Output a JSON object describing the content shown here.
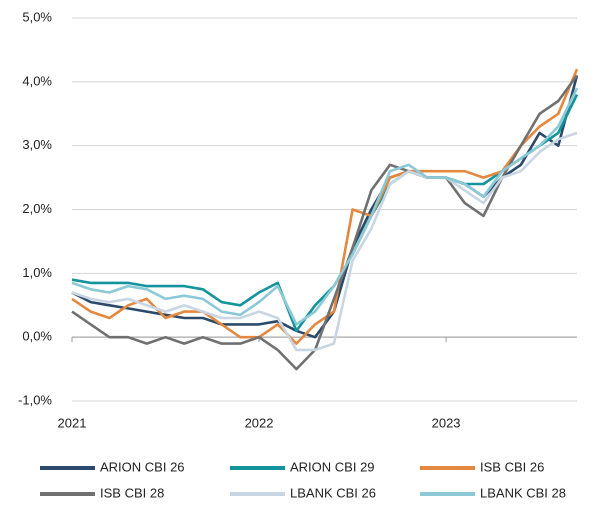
{
  "chart_data": {
    "type": "line",
    "x": [
      2021.0,
      2021.1,
      2021.2,
      2021.3,
      2021.4,
      2021.5,
      2021.6,
      2021.7,
      2021.8,
      2021.9,
      2022.0,
      2022.1,
      2022.2,
      2022.3,
      2022.4,
      2022.5,
      2022.6,
      2022.7,
      2022.8,
      2022.9,
      2023.0,
      2023.1,
      2023.2,
      2023.3,
      2023.4,
      2023.5,
      2023.6,
      2023.7
    ],
    "xlim": [
      2021.0,
      2023.7
    ],
    "xticks": [
      2021,
      2022,
      2023
    ],
    "ylim": [
      -1,
      5
    ],
    "yticks": [
      {
        "value": -1,
        "label": "-1,0%"
      },
      {
        "value": 0,
        "label": "0,0%"
      },
      {
        "value": 1,
        "label": "1,0%"
      },
      {
        "value": 2,
        "label": "2,0%"
      },
      {
        "value": 3,
        "label": "3,0%"
      },
      {
        "value": 4,
        "label": "4,0%"
      },
      {
        "value": 5,
        "label": "5,0%"
      }
    ],
    "grid": true,
    "legend": "bottom",
    "series": [
      {
        "name": "ARION CBI 26",
        "color": "#2b4a6b",
        "values": [
          0.7,
          0.55,
          0.5,
          0.45,
          0.4,
          0.35,
          0.3,
          0.3,
          0.2,
          0.2,
          0.2,
          0.25,
          0.1,
          0.0,
          0.4,
          1.4,
          2.0,
          2.5,
          2.6,
          2.5,
          2.5,
          2.4,
          2.2,
          2.5,
          2.7,
          3.2,
          3.0,
          4.1
        ]
      },
      {
        "name": "ARION CBI 29",
        "color": "#13939b",
        "values": [
          0.9,
          0.85,
          0.85,
          0.85,
          0.8,
          0.8,
          0.8,
          0.75,
          0.55,
          0.5,
          0.7,
          0.85,
          0.1,
          0.5,
          0.8,
          1.3,
          1.9,
          2.4,
          2.6,
          2.5,
          2.5,
          2.4,
          2.4,
          2.6,
          2.8,
          3.0,
          3.2,
          3.8
        ]
      },
      {
        "name": "ISB CBI 26",
        "color": "#e5883f",
        "values": [
          0.6,
          0.4,
          0.3,
          0.5,
          0.6,
          0.3,
          0.4,
          0.4,
          0.2,
          0.0,
          0.0,
          0.2,
          -0.1,
          0.2,
          0.4,
          2.0,
          1.9,
          2.5,
          2.6,
          2.6,
          2.6,
          2.6,
          2.5,
          2.6,
          3.0,
          3.3,
          3.5,
          4.2
        ]
      },
      {
        "name": "ISB CBI 28",
        "color": "#707070",
        "values": [
          0.4,
          0.2,
          0.0,
          0.0,
          -0.1,
          0.0,
          -0.1,
          0.0,
          -0.1,
          -0.1,
          0.0,
          -0.2,
          -0.5,
          -0.2,
          0.6,
          1.4,
          2.3,
          2.7,
          2.6,
          2.5,
          2.5,
          2.1,
          1.9,
          2.5,
          3.0,
          3.5,
          3.7,
          4.1
        ]
      },
      {
        "name": "LBANK CBI 26",
        "color": "#c8d5e3",
        "values": [
          0.7,
          0.6,
          0.55,
          0.6,
          0.5,
          0.4,
          0.5,
          0.4,
          0.3,
          0.3,
          0.4,
          0.3,
          -0.2,
          -0.2,
          -0.1,
          1.2,
          1.7,
          2.4,
          2.6,
          2.5,
          2.5,
          2.3,
          2.1,
          2.5,
          2.6,
          2.9,
          3.1,
          3.2
        ]
      },
      {
        "name": "LBANK CBI 28",
        "color": "#8cc9d6",
        "values": [
          0.85,
          0.75,
          0.7,
          0.8,
          0.75,
          0.6,
          0.65,
          0.6,
          0.4,
          0.35,
          0.55,
          0.8,
          0.2,
          0.4,
          0.8,
          1.3,
          1.9,
          2.6,
          2.7,
          2.5,
          2.5,
          2.4,
          2.2,
          2.6,
          2.8,
          3.0,
          3.3,
          3.9
        ]
      }
    ]
  }
}
